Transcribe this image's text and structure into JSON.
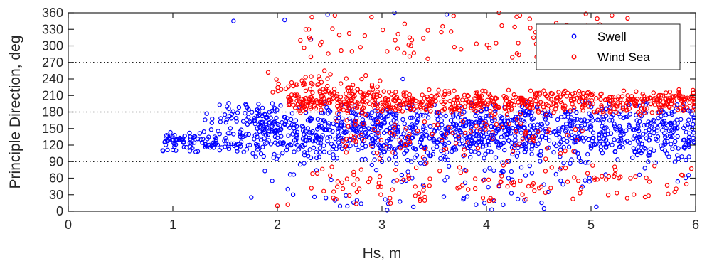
{
  "chart_data": {
    "type": "scatter",
    "title": "",
    "xlabel": "Hs, m",
    "ylabel": "Principle Direction, deg",
    "xlim": [
      0,
      6
    ],
    "ylim": [
      0,
      360
    ],
    "xticks": [
      0,
      1,
      2,
      3,
      4,
      5,
      6
    ],
    "xtick_labels": [
      "0",
      "1",
      "2",
      "3",
      "4",
      "5",
      "6"
    ],
    "yticks": [
      0,
      30,
      60,
      90,
      120,
      150,
      180,
      210,
      240,
      270,
      300,
      330,
      360
    ],
    "ytick_labels": [
      "0",
      "30",
      "60",
      "90",
      "120",
      "150",
      "180",
      "210",
      "240",
      "270",
      "300",
      "330",
      "360"
    ],
    "reference_lines_y": [
      90,
      180,
      270
    ],
    "grid": false,
    "legend_position": "top-right",
    "series": [
      {
        "name": "Swell",
        "color": "#0000ff",
        "marker": "open-circle",
        "clusters": [
          {
            "x_range": [
              0.9,
              1.7
            ],
            "y_range": [
              100,
              150
            ],
            "count": 110
          },
          {
            "x_range": [
              1.3,
              2.0
            ],
            "y_range": [
              150,
              200
            ],
            "count": 50
          },
          {
            "x_range": [
              1.7,
              6.0
            ],
            "y_range": [
              85,
              200
            ],
            "count": 1200
          },
          {
            "x_range": [
              2.0,
              6.0
            ],
            "y_range": [
              40,
              90
            ],
            "count": 50
          },
          {
            "x_range": [
              2.3,
              4.6
            ],
            "y_range": [
              0,
              40
            ],
            "count": 22
          }
        ],
        "points": [
          {
            "x": 1.58,
            "y": 345
          },
          {
            "x": 2.07,
            "y": 347
          },
          {
            "x": 2.48,
            "y": 357
          },
          {
            "x": 2.32,
            "y": 312
          },
          {
            "x": 3.12,
            "y": 360
          },
          {
            "x": 3.62,
            "y": 357
          },
          {
            "x": 3.2,
            "y": 240
          },
          {
            "x": 1.75,
            "y": 25
          },
          {
            "x": 1.88,
            "y": 73
          },
          {
            "x": 2.1,
            "y": 40
          },
          {
            "x": 2.15,
            "y": 30
          },
          {
            "x": 1.95,
            "y": 55
          },
          {
            "x": 4.55,
            "y": 5
          },
          {
            "x": 5.05,
            "y": 8
          },
          {
            "x": 4.05,
            "y": 3
          },
          {
            "x": 3.9,
            "y": 12
          },
          {
            "x": 2.55,
            "y": 20
          },
          {
            "x": 4.3,
            "y": 22
          },
          {
            "x": 3.05,
            "y": 2
          },
          {
            "x": 3.3,
            "y": 8
          }
        ]
      },
      {
        "name": "Wind Sea",
        "color": "#ff0000",
        "marker": "open-circle",
        "clusters": [
          {
            "x_range": [
              2.1,
              6.0
            ],
            "y_range": [
              175,
              222
            ],
            "count": 650
          },
          {
            "x_range": [
              1.9,
              3.0
            ],
            "y_range": [
              200,
              255
            ],
            "count": 60
          },
          {
            "x_range": [
              2.5,
              5.0
            ],
            "y_range": [
              90,
              175
            ],
            "count": 100
          },
          {
            "x_range": [
              2.3,
              6.0
            ],
            "y_range": [
              5,
              95
            ],
            "count": 130
          },
          {
            "x_range": [
              2.25,
              5.2
            ],
            "y_range": [
              270,
              360
            ],
            "count": 70
          }
        ],
        "points": [
          {
            "x": 2.33,
            "y": 352
          },
          {
            "x": 2.55,
            "y": 355
          },
          {
            "x": 2.9,
            "y": 352
          },
          {
            "x": 4.12,
            "y": 360
          },
          {
            "x": 4.32,
            "y": 355
          },
          {
            "x": 4.95,
            "y": 358
          },
          {
            "x": 5.2,
            "y": 355
          },
          {
            "x": 5.35,
            "y": 350
          },
          {
            "x": 4.45,
            "y": 315
          },
          {
            "x": 4.55,
            "y": 303
          },
          {
            "x": 4.62,
            "y": 298
          },
          {
            "x": 2.32,
            "y": 280
          },
          {
            "x": 2.22,
            "y": 310
          },
          {
            "x": 2.3,
            "y": 330
          },
          {
            "x": 3.05,
            "y": 290
          },
          {
            "x": 3.15,
            "y": 295
          },
          {
            "x": 2.0,
            "y": 10
          },
          {
            "x": 2.1,
            "y": 12
          },
          {
            "x": 5.55,
            "y": 28
          },
          {
            "x": 5.8,
            "y": 35
          },
          {
            "x": 2.45,
            "y": 255
          }
        ]
      }
    ]
  }
}
